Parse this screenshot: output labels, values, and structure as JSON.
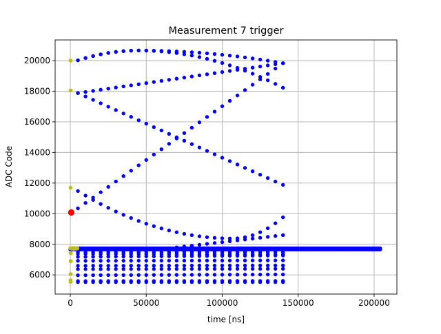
{
  "chart_data": {
    "type": "scatter",
    "title": "Measurement 7 trigger",
    "xlabel": "time [ns]",
    "ylabel": "ADC Code",
    "xlim": [
      -10000,
      215000
    ],
    "ylim": [
      4750,
      21350
    ],
    "xticks": [
      {
        "value": 0,
        "label": "0"
      },
      {
        "value": 50000,
        "label": "50000"
      },
      {
        "value": 100000,
        "label": "100000"
      },
      {
        "value": 150000,
        "label": "150000"
      },
      {
        "value": 200000,
        "label": "200000"
      }
    ],
    "yticks": [
      {
        "value": 6000,
        "label": "6000"
      },
      {
        "value": 8000,
        "label": "8000"
      },
      {
        "value": 10000,
        "label": "10000"
      },
      {
        "value": 12000,
        "label": "12000"
      },
      {
        "value": 14000,
        "label": "14000"
      },
      {
        "value": 16000,
        "label": "16000"
      },
      {
        "value": 18000,
        "label": "18000"
      },
      {
        "value": 20000,
        "label": "20000"
      }
    ],
    "grid": true,
    "legend": "none",
    "colors": {
      "main": "#0000ff",
      "pre_trigger": "#bcbd22",
      "trigger": "#ff0000"
    },
    "series": [
      {
        "role": "main",
        "color": "#0000ff",
        "curves": [
          {
            "x_start": 5000,
            "x_end": 140000,
            "step": 5000,
            "shape": "parabola",
            "y_start": 20020,
            "y_end": 19830,
            "x_peak": 45000,
            "y_peak": 20660
          },
          {
            "x_start": 5000,
            "x_end": 140000,
            "step": 5000,
            "shape": "parabola",
            "y_start": 20020,
            "y_end": 18230,
            "x_peak": 45000,
            "y_peak": 20660
          },
          {
            "x_start": 5000,
            "x_end": 140000,
            "step": 5000,
            "shape": "linear",
            "y_start": 17880,
            "y_end": 19830
          },
          {
            "x_start": 5000,
            "x_end": 140000,
            "step": 5000,
            "shape": "linear",
            "y_start": 17880,
            "y_end": 11880
          },
          {
            "x_start": 5000,
            "x_end": 140000,
            "step": 5000,
            "shape": "linear",
            "y_start": 10350,
            "y_end": 19830
          },
          {
            "x_start": 5000,
            "x_end": 140000,
            "step": 5000,
            "shape": "parabola",
            "y_start": 11480,
            "y_end": 9760,
            "x_peak": 107000,
            "y_peak": 8380
          },
          {
            "x_start": 70000,
            "x_end": 140000,
            "step": 5000,
            "shape": "linear",
            "y_start": 7800,
            "y_end": 8600
          },
          {
            "x_start": 5000,
            "x_end": 140000,
            "step": 5000,
            "shape": "linear",
            "y_start": 7500,
            "y_end": 7480
          },
          {
            "x_start": 5000,
            "x_end": 140000,
            "step": 5000,
            "shape": "linear",
            "y_start": 7380,
            "y_end": 7330
          },
          {
            "x_start": 5000,
            "x_end": 140000,
            "step": 5000,
            "shape": "linear",
            "y_start": 7180,
            "y_end": 7270
          },
          {
            "x_start": 5000,
            "x_end": 140000,
            "step": 5000,
            "shape": "linear",
            "y_start": 6920,
            "y_end": 6950
          },
          {
            "x_start": 5000,
            "x_end": 140000,
            "step": 5000,
            "shape": "linear",
            "y_start": 6600,
            "y_end": 6620
          },
          {
            "x_start": 5000,
            "x_end": 140000,
            "step": 5000,
            "shape": "linear",
            "y_start": 6380,
            "y_end": 6400
          },
          {
            "x_start": 5000,
            "x_end": 140000,
            "step": 5000,
            "shape": "linear",
            "y_start": 5980,
            "y_end": 6030
          },
          {
            "x_start": 5000,
            "x_end": 140000,
            "step": 5000,
            "shape": "linear",
            "y_start": 5600,
            "y_end": 5610
          },
          {
            "x_start": 5000,
            "x_end": 140000,
            "step": 5000,
            "shape": "linear",
            "y_start": 5530,
            "y_end": 5530
          },
          {
            "x_start": 0,
            "x_end": 204000,
            "step": 1000,
            "shape": "linear",
            "y_start": 7740,
            "y_end": 7740
          },
          {
            "x_start": 0,
            "x_end": 204000,
            "step": 1000,
            "shape": "linear",
            "y_start": 7660,
            "y_end": 7660
          }
        ]
      },
      {
        "role": "pre_trigger",
        "color": "#bcbd22",
        "points": [
          [
            200,
            20000
          ],
          [
            200,
            18050
          ],
          [
            200,
            11700
          ],
          [
            100,
            7750
          ],
          [
            800,
            7720
          ],
          [
            1500,
            7760
          ],
          [
            2300,
            7700
          ],
          [
            3000,
            7750
          ],
          [
            3800,
            7720
          ],
          [
            4600,
            7740
          ],
          [
            300,
            7420
          ],
          [
            300,
            6900
          ],
          [
            200,
            6050
          ],
          [
            200,
            5650
          ],
          [
            200,
            5550
          ]
        ]
      },
      {
        "role": "trigger",
        "color": "#ff0000",
        "points": [
          [
            600,
            10080
          ]
        ]
      }
    ]
  }
}
